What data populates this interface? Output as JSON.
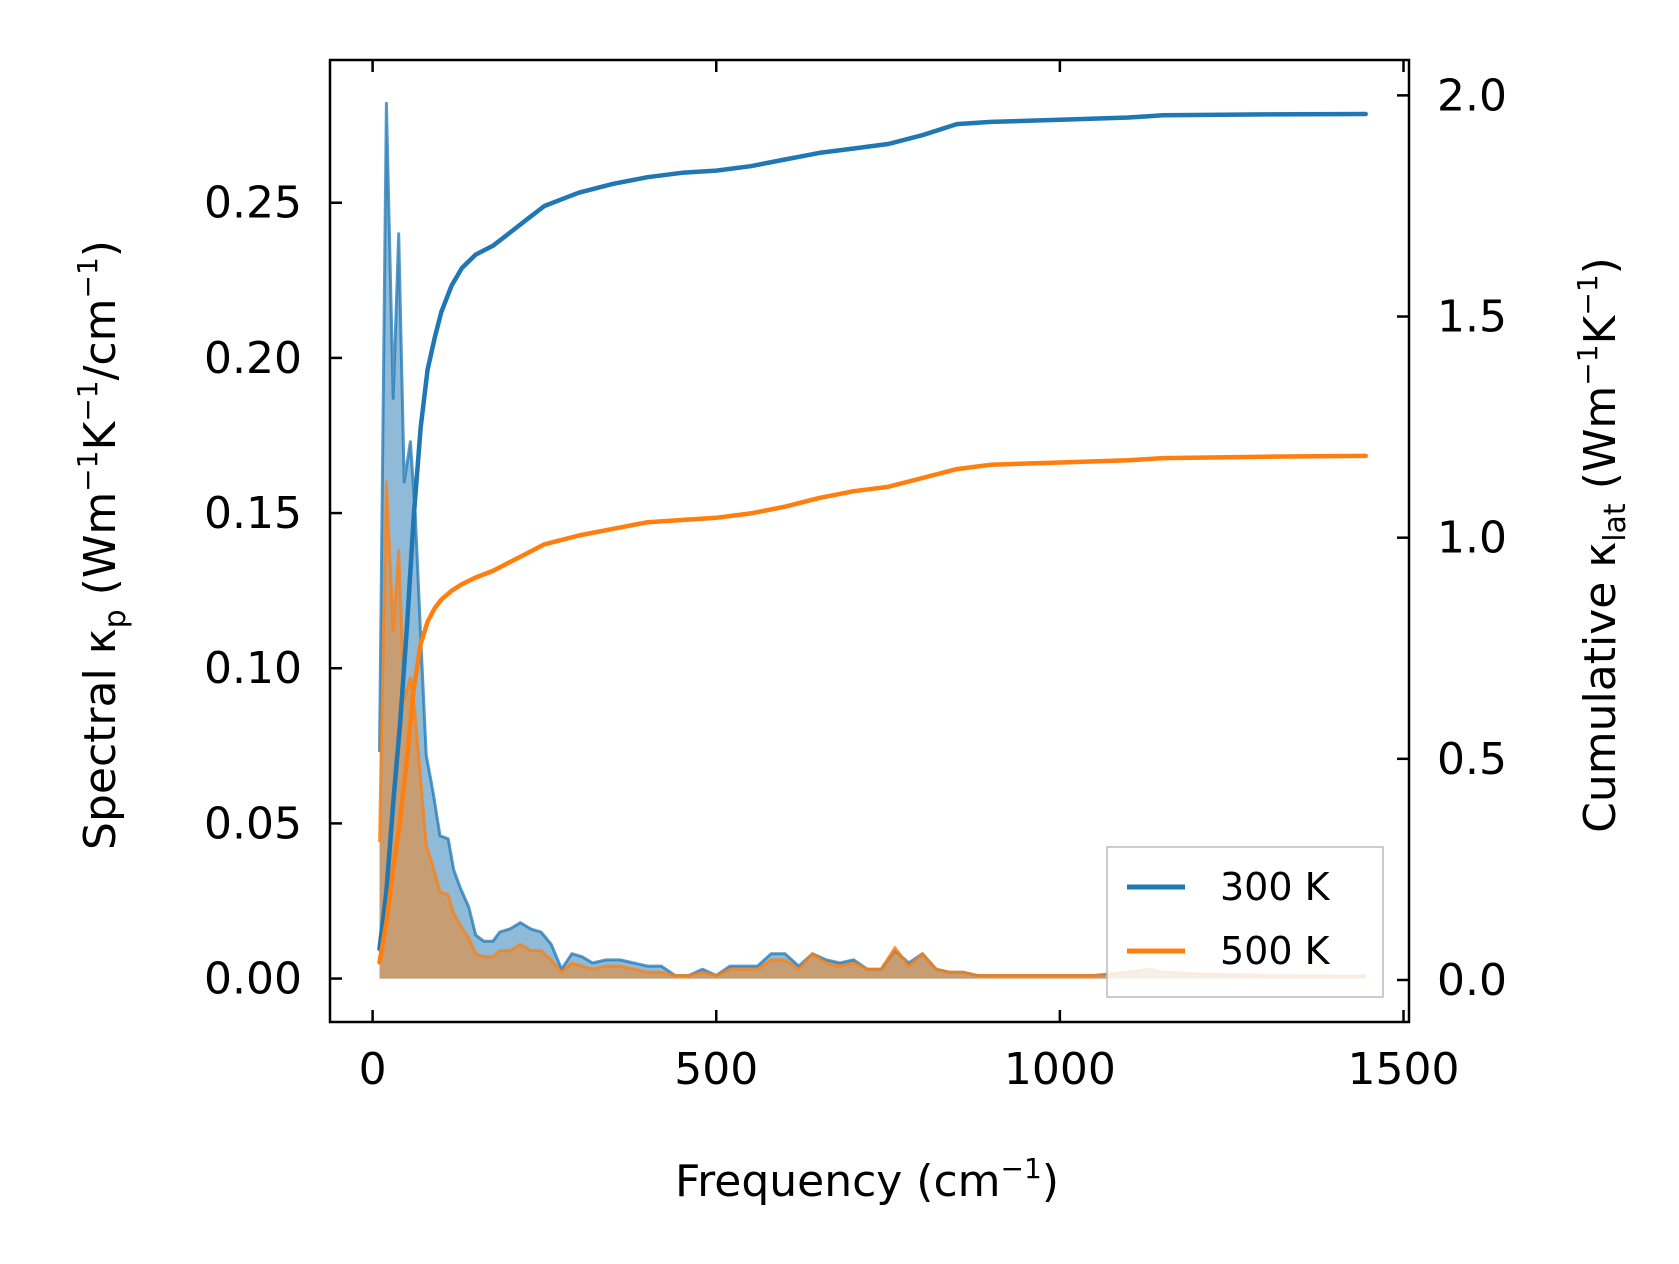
{
  "chart_data": {
    "type": "line",
    "xlabel": {
      "main": "Frequency (cm",
      "sup": "−1",
      "end": ")"
    },
    "ylabel_left": {
      "prefix": "Spectral κ",
      "sub": "p",
      "middle": " (Wm",
      "sup1": "−1",
      "k": "K",
      "sup2": "−1",
      "slash": "/cm",
      "sup3": "−1",
      "end": ")"
    },
    "ylabel_right": {
      "prefix": "Cumulative κ",
      "sub": "lat",
      "middle": " (Wm",
      "sup1": "−1",
      "k": "K",
      "sup2": "−1",
      "end": ")"
    },
    "xlim": [
      -62,
      1508
    ],
    "ylim_left": [
      -0.014,
      0.296
    ],
    "ylim_right": [
      -0.095,
      2.08
    ],
    "x_ticks": [
      0,
      500,
      1000,
      1500
    ],
    "x_tick_labels": [
      "0",
      "500",
      "1000",
      "1500"
    ],
    "y_left_ticks": [
      0,
      0.05,
      0.1,
      0.15,
      0.2,
      0.25
    ],
    "y_left_tick_labels": [
      "0.00",
      "0.05",
      "0.10",
      "0.15",
      "0.20",
      "0.25"
    ],
    "y_right_ticks": [
      0,
      0.5,
      1.0,
      1.5,
      2.0
    ],
    "y_right_tick_labels": [
      "0.0",
      "0.5",
      "1.0",
      "1.5",
      "2.0"
    ],
    "legend": {
      "position": "lower-right",
      "entries": [
        "300 K",
        "500 K"
      ]
    },
    "series": [
      {
        "name": "300 K",
        "color": "#1f77b4",
        "spectral": [
          [
            10,
            0.073
          ],
          [
            20,
            0.282
          ],
          [
            30,
            0.187
          ],
          [
            38,
            0.24
          ],
          [
            46,
            0.16
          ],
          [
            55,
            0.173
          ],
          [
            62,
            0.15
          ],
          [
            70,
            0.11
          ],
          [
            78,
            0.072
          ],
          [
            88,
            0.06
          ],
          [
            98,
            0.046
          ],
          [
            110,
            0.045
          ],
          [
            118,
            0.035
          ],
          [
            128,
            0.029
          ],
          [
            140,
            0.023
          ],
          [
            150,
            0.014
          ],
          [
            162,
            0.012
          ],
          [
            175,
            0.012
          ],
          [
            185,
            0.015
          ],
          [
            200,
            0.016
          ],
          [
            215,
            0.018
          ],
          [
            230,
            0.016
          ],
          [
            245,
            0.015
          ],
          [
            260,
            0.011
          ],
          [
            275,
            0.003
          ],
          [
            290,
            0.008
          ],
          [
            305,
            0.007
          ],
          [
            320,
            0.005
          ],
          [
            340,
            0.006
          ],
          [
            360,
            0.006
          ],
          [
            380,
            0.005
          ],
          [
            400,
            0.004
          ],
          [
            420,
            0.004
          ],
          [
            440,
            0.001
          ],
          [
            460,
            0.001
          ],
          [
            480,
            0.003
          ],
          [
            500,
            0.001
          ],
          [
            520,
            0.004
          ],
          [
            540,
            0.004
          ],
          [
            560,
            0.004
          ],
          [
            580,
            0.008
          ],
          [
            600,
            0.008
          ],
          [
            620,
            0.004
          ],
          [
            640,
            0.008
          ],
          [
            660,
            0.006
          ],
          [
            680,
            0.005
          ],
          [
            700,
            0.006
          ],
          [
            720,
            0.003
          ],
          [
            740,
            0.003
          ],
          [
            760,
            0.009
          ],
          [
            780,
            0.005
          ],
          [
            800,
            0.008
          ],
          [
            820,
            0.003
          ],
          [
            840,
            0.002
          ],
          [
            860,
            0.002
          ],
          [
            880,
            0.001
          ],
          [
            900,
            0.001
          ],
          [
            950,
            0.001
          ],
          [
            1000,
            0.001
          ],
          [
            1050,
            0.001
          ],
          [
            1100,
            0.002
          ],
          [
            1130,
            0.003
          ],
          [
            1150,
            0.002
          ],
          [
            1200,
            0.0015
          ],
          [
            1300,
            0.001
          ],
          [
            1400,
            0.0008
          ],
          [
            1445,
            0.0008
          ]
        ],
        "cumulative": [
          [
            10,
            0.07
          ],
          [
            20,
            0.2
          ],
          [
            30,
            0.4
          ],
          [
            40,
            0.58
          ],
          [
            50,
            0.8
          ],
          [
            60,
            1.05
          ],
          [
            70,
            1.25
          ],
          [
            80,
            1.38
          ],
          [
            90,
            1.45
          ],
          [
            100,
            1.51
          ],
          [
            115,
            1.57
          ],
          [
            130,
            1.61
          ],
          [
            150,
            1.64
          ],
          [
            175,
            1.66
          ],
          [
            200,
            1.69
          ],
          [
            225,
            1.72
          ],
          [
            250,
            1.75
          ],
          [
            275,
            1.765
          ],
          [
            300,
            1.78
          ],
          [
            350,
            1.8
          ],
          [
            400,
            1.815
          ],
          [
            450,
            1.825
          ],
          [
            500,
            1.83
          ],
          [
            550,
            1.84
          ],
          [
            600,
            1.855
          ],
          [
            650,
            1.87
          ],
          [
            700,
            1.88
          ],
          [
            750,
            1.89
          ],
          [
            800,
            1.91
          ],
          [
            850,
            1.935
          ],
          [
            900,
            1.94
          ],
          [
            1000,
            1.945
          ],
          [
            1100,
            1.95
          ],
          [
            1150,
            1.955
          ],
          [
            1300,
            1.957
          ],
          [
            1445,
            1.958
          ]
        ]
      },
      {
        "name": "500 K",
        "color": "#ff7f0e",
        "spectral": [
          [
            10,
            0.044
          ],
          [
            20,
            0.16
          ],
          [
            30,
            0.112
          ],
          [
            38,
            0.138
          ],
          [
            46,
            0.09
          ],
          [
            55,
            0.097
          ],
          [
            62,
            0.085
          ],
          [
            70,
            0.064
          ],
          [
            78,
            0.043
          ],
          [
            88,
            0.036
          ],
          [
            98,
            0.028
          ],
          [
            110,
            0.027
          ],
          [
            118,
            0.021
          ],
          [
            128,
            0.017
          ],
          [
            140,
            0.013
          ],
          [
            150,
            0.008
          ],
          [
            162,
            0.007
          ],
          [
            175,
            0.007
          ],
          [
            185,
            0.009
          ],
          [
            200,
            0.009
          ],
          [
            215,
            0.011
          ],
          [
            230,
            0.009
          ],
          [
            245,
            0.009
          ],
          [
            260,
            0.006
          ],
          [
            275,
            0.002
          ],
          [
            290,
            0.005
          ],
          [
            305,
            0.004
          ],
          [
            320,
            0.003
          ],
          [
            340,
            0.004
          ],
          [
            360,
            0.004
          ],
          [
            380,
            0.003
          ],
          [
            400,
            0.002
          ],
          [
            420,
            0.002
          ],
          [
            440,
            0.001
          ],
          [
            460,
            0.001
          ],
          [
            480,
            0.002
          ],
          [
            500,
            0.001
          ],
          [
            520,
            0.003
          ],
          [
            540,
            0.003
          ],
          [
            560,
            0.003
          ],
          [
            580,
            0.006
          ],
          [
            600,
            0.006
          ],
          [
            620,
            0.003
          ],
          [
            640,
            0.008
          ],
          [
            660,
            0.005
          ],
          [
            680,
            0.004
          ],
          [
            700,
            0.005
          ],
          [
            720,
            0.003
          ],
          [
            740,
            0.003
          ],
          [
            760,
            0.01
          ],
          [
            780,
            0.004
          ],
          [
            800,
            0.008
          ],
          [
            820,
            0.003
          ],
          [
            840,
            0.002
          ],
          [
            860,
            0.002
          ],
          [
            880,
            0.001
          ],
          [
            900,
            0.001
          ],
          [
            950,
            0.001
          ],
          [
            1000,
            0.001
          ],
          [
            1050,
            0.001
          ],
          [
            1100,
            0.002
          ],
          [
            1130,
            0.003
          ],
          [
            1150,
            0.002
          ],
          [
            1200,
            0.0015
          ],
          [
            1300,
            0.001
          ],
          [
            1400,
            0.0008
          ],
          [
            1445,
            0.0008
          ]
        ],
        "cumulative": [
          [
            10,
            0.04
          ],
          [
            20,
            0.13
          ],
          [
            30,
            0.25
          ],
          [
            40,
            0.36
          ],
          [
            50,
            0.5
          ],
          [
            60,
            0.66
          ],
          [
            70,
            0.76
          ],
          [
            80,
            0.81
          ],
          [
            90,
            0.84
          ],
          [
            100,
            0.86
          ],
          [
            115,
            0.88
          ],
          [
            130,
            0.895
          ],
          [
            150,
            0.91
          ],
          [
            175,
            0.925
          ],
          [
            200,
            0.945
          ],
          [
            225,
            0.965
          ],
          [
            250,
            0.985
          ],
          [
            275,
            0.995
          ],
          [
            300,
            1.005
          ],
          [
            350,
            1.02
          ],
          [
            400,
            1.035
          ],
          [
            450,
            1.04
          ],
          [
            500,
            1.045
          ],
          [
            550,
            1.055
          ],
          [
            600,
            1.07
          ],
          [
            650,
            1.09
          ],
          [
            700,
            1.105
          ],
          [
            750,
            1.115
          ],
          [
            800,
            1.135
          ],
          [
            850,
            1.155
          ],
          [
            900,
            1.165
          ],
          [
            1000,
            1.17
          ],
          [
            1100,
            1.175
          ],
          [
            1150,
            1.18
          ],
          [
            1300,
            1.183
          ],
          [
            1445,
            1.185
          ]
        ]
      }
    ]
  }
}
